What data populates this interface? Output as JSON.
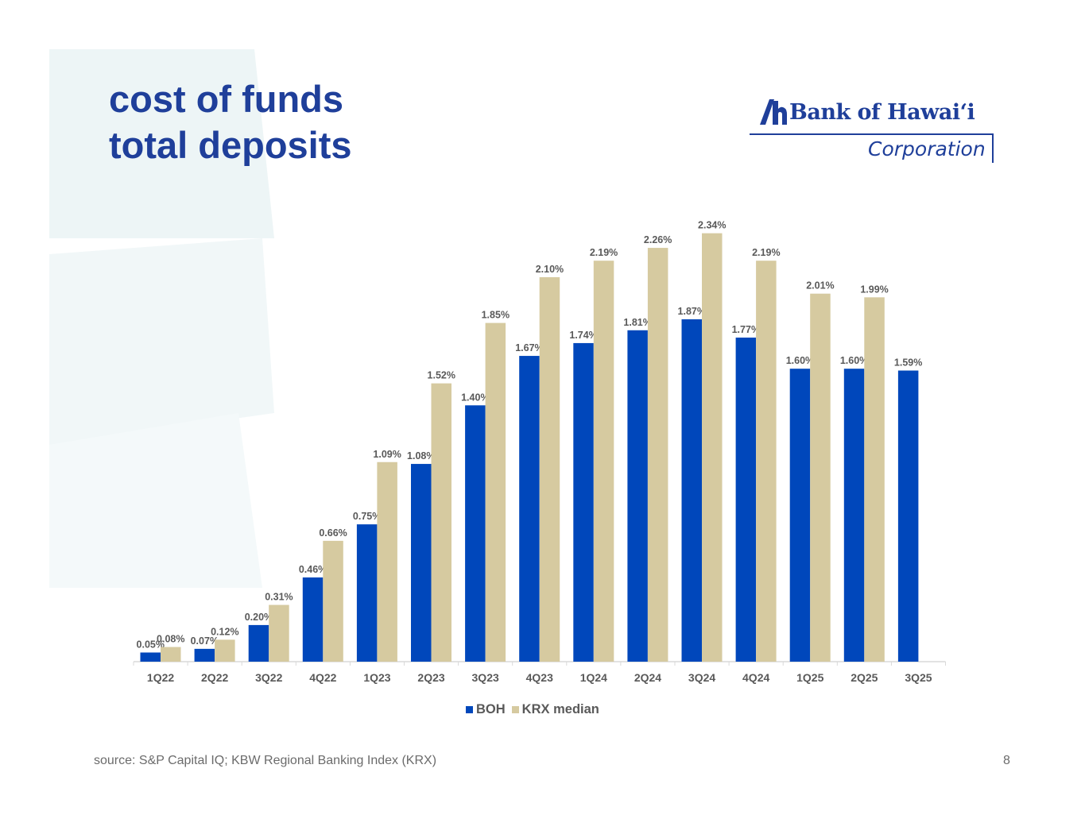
{
  "slide": {
    "title_lines": [
      "cost of funds",
      "total deposits"
    ],
    "logo_name": "Bank of Hawai‘i",
    "logo_sub": "Corporation",
    "source": "source: S&P Capital IQ; KBW Regional Banking Index (KRX)",
    "page_number": "8"
  },
  "colors": {
    "title": "#1f3f9a",
    "boh": "#0047bb",
    "krx": "#d6caa0",
    "watermark": "#edf5f6",
    "axis_text": "#595959"
  },
  "chart_data": {
    "type": "bar",
    "title": "",
    "xlabel": "",
    "ylabel": "",
    "ylim": [
      0,
      2.5
    ],
    "grid": false,
    "legend": "bottom-center",
    "categories": [
      "1Q22",
      "2Q22",
      "3Q22",
      "4Q22",
      "1Q23",
      "2Q23",
      "3Q23",
      "4Q23",
      "1Q24",
      "2Q24",
      "3Q24",
      "4Q24",
      "1Q25",
      "2Q25",
      "3Q25"
    ],
    "series": [
      {
        "name": "BOH",
        "values": [
          0.05,
          0.07,
          0.2,
          0.46,
          0.75,
          1.08,
          1.4,
          1.67,
          1.74,
          1.81,
          1.87,
          1.77,
          1.6,
          1.6,
          1.59
        ],
        "labels": [
          "0.05%",
          "0.07%",
          "0.20%",
          "0.46%",
          "0.75%",
          "1.08%",
          "1.40%",
          "1.67%",
          "1.74%",
          "1.81%",
          "1.87%",
          "1.77%",
          "1.60%",
          "1.60%",
          "1.59%"
        ]
      },
      {
        "name": "KRX median",
        "values": [
          0.08,
          0.12,
          0.31,
          0.66,
          1.09,
          1.52,
          1.85,
          2.1,
          2.19,
          2.26,
          2.34,
          2.19,
          2.01,
          1.99,
          null
        ],
        "labels": [
          "0.08%",
          "0.12%",
          "0.31%",
          "0.66%",
          "1.09%",
          "1.52%",
          "1.85%",
          "2.10%",
          "2.19%",
          "2.26%",
          "2.34%",
          "2.19%",
          "2.01%",
          "1.99%",
          ""
        ]
      }
    ]
  }
}
